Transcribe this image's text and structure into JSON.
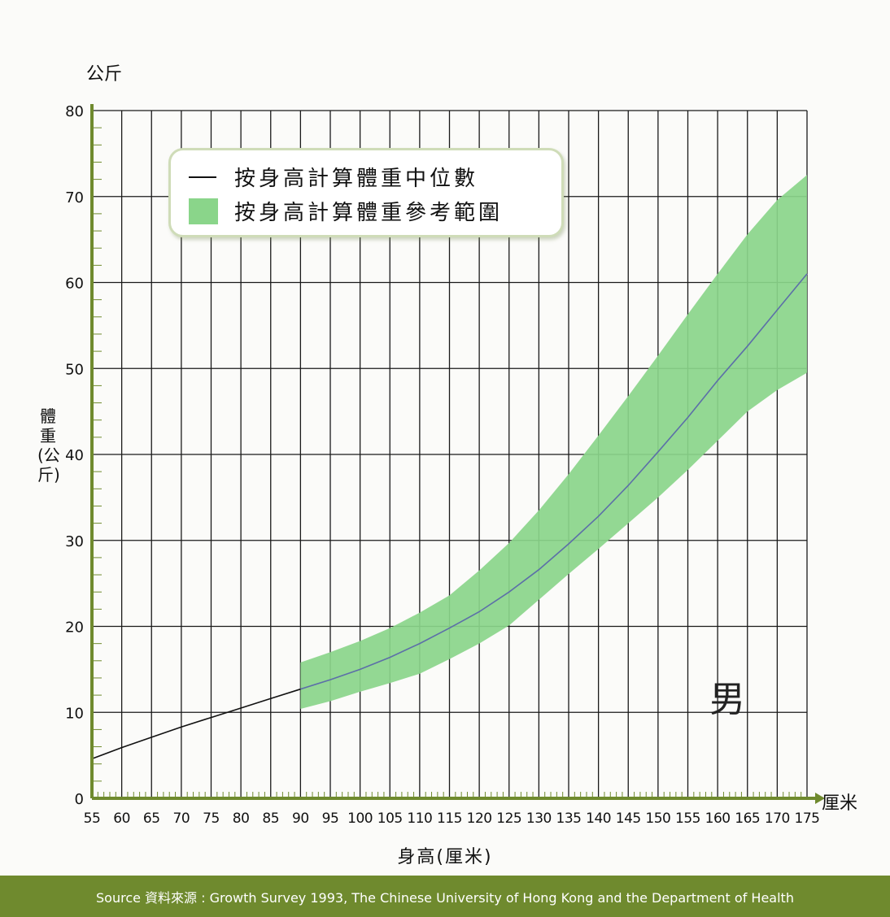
{
  "y_unit_top": "公斤",
  "ylabel": "體重(公斤)",
  "xlabel": "身高(厘米)",
  "x_unit": "厘米",
  "gender_label": "男",
  "legend": {
    "median_label": "按身高計算體重中位數",
    "range_label": "按身高計算體重參考範圍"
  },
  "footer": "Source 資料來源 : Growth Survey 1993, The Chinese University of Hong Kong and the Department of Health",
  "colors": {
    "grid": "#1a1a1a",
    "axis": "#6f8a2e",
    "band": "#8ad58a",
    "median_line": "#111111",
    "median_line_in_band": "#5c6fa8",
    "footer_bg": "#6f8a2e"
  },
  "chart_data": {
    "type": "line",
    "xlabel": "身高(厘米)",
    "ylabel": "體重(公斤)",
    "xlim": [
      55,
      175
    ],
    "ylim": [
      0,
      80
    ],
    "x_ticks": [
      55,
      60,
      65,
      70,
      75,
      80,
      85,
      90,
      95,
      100,
      105,
      110,
      115,
      120,
      125,
      130,
      135,
      140,
      145,
      150,
      155,
      160,
      165,
      170,
      175
    ],
    "y_ticks": [
      0,
      10,
      20,
      30,
      40,
      50,
      60,
      70,
      80
    ],
    "grid": true,
    "legend_position": "top-left",
    "series": [
      {
        "name": "按身高計算體重中位數",
        "x": [
          55,
          60,
          65,
          70,
          75,
          80,
          85,
          90,
          95,
          100,
          105,
          110,
          115,
          120,
          125,
          130,
          135,
          140,
          145,
          150,
          155,
          160,
          165,
          170,
          175
        ],
        "y": [
          4.6,
          5.9,
          7.1,
          8.3,
          9.4,
          10.5,
          11.6,
          12.7,
          13.8,
          15.0,
          16.4,
          18.0,
          19.8,
          21.7,
          24.0,
          26.6,
          29.6,
          32.8,
          36.4,
          40.3,
          44.3,
          48.6,
          52.6,
          56.8,
          61.0
        ]
      },
      {
        "name": "按身高計算體重參考範圍",
        "type": "area",
        "x": [
          90,
          95,
          100,
          105,
          110,
          115,
          120,
          125,
          130,
          135,
          140,
          145,
          150,
          155,
          160,
          165,
          170,
          175
        ],
        "lower": [
          10.4,
          11.3,
          12.4,
          13.4,
          14.5,
          16.2,
          18.0,
          20.1,
          23.1,
          26.1,
          29.0,
          32.0,
          35.0,
          38.2,
          41.6,
          45.0,
          47.5,
          49.5
        ],
        "upper": [
          15.8,
          17.0,
          18.3,
          19.8,
          21.6,
          23.6,
          26.5,
          29.7,
          33.5,
          37.7,
          42.2,
          46.8,
          51.5,
          56.3,
          61.0,
          65.6,
          69.6,
          72.5
        ]
      }
    ]
  }
}
